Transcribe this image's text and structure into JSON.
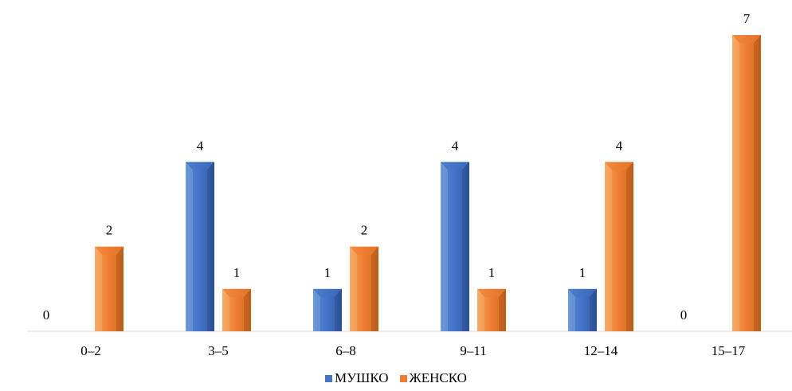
{
  "chart_data": {
    "type": "bar",
    "categories": [
      "0–2",
      "3–5",
      "6–8",
      "9–11",
      "12–14",
      "15–17"
    ],
    "series": [
      {
        "name": "МУШКО",
        "values": [
          0,
          4,
          1,
          4,
          1,
          0
        ],
        "color": "#4472c4"
      },
      {
        "name": "ЖЕНСКО",
        "values": [
          2,
          1,
          2,
          1,
          4,
          7
        ],
        "color": "#ed7d31"
      }
    ],
    "ylim": [
      0,
      7
    ],
    "data_labels": true,
    "grid": false,
    "legend": "bottom"
  }
}
